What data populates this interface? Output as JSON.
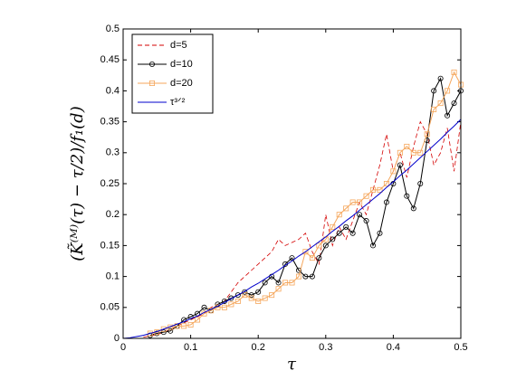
{
  "chart_data": {
    "type": "line",
    "xlabel": "τ",
    "ylabel": "(K̃⁽ᴹ⁾(τ) − τ/2)/f₁(d)",
    "x": [
      0,
      0.01,
      0.02,
      0.03,
      0.04,
      0.05,
      0.06,
      0.07,
      0.08,
      0.09,
      0.1,
      0.11,
      0.12,
      0.13,
      0.14,
      0.15,
      0.16,
      0.17,
      0.18,
      0.19,
      0.2,
      0.21,
      0.22,
      0.23,
      0.24,
      0.25,
      0.26,
      0.27,
      0.28,
      0.29,
      0.3,
      0.31,
      0.32,
      0.33,
      0.34,
      0.35,
      0.36,
      0.37,
      0.38,
      0.39,
      0.4,
      0.41,
      0.42,
      0.43,
      0.44,
      0.45,
      0.46,
      0.47,
      0.48,
      0.49,
      0.5
    ],
    "series": [
      {
        "name": "d=5",
        "color": "#d40000",
        "dash": true,
        "marker": "none",
        "values": [
          null,
          null,
          null,
          0.002,
          0.004,
          0.006,
          0.01,
          0.014,
          0.02,
          0.025,
          0.03,
          0.035,
          0.04,
          0.05,
          0.055,
          0.06,
          0.075,
          0.09,
          0.1,
          0.11,
          0.12,
          0.13,
          0.14,
          0.16,
          0.15,
          0.155,
          0.16,
          0.17,
          0.14,
          0.12,
          0.2,
          0.15,
          0.18,
          0.16,
          0.19,
          0.22,
          0.2,
          0.24,
          0.28,
          0.33,
          0.27,
          0.3,
          0.26,
          0.31,
          0.35,
          0.33,
          0.28,
          0.3,
          0.34,
          0.27,
          0.35
        ]
      },
      {
        "name": "d=10",
        "color": "#000000",
        "dash": false,
        "marker": "circle",
        "values": [
          null,
          null,
          null,
          null,
          0.005,
          0.008,
          0.01,
          0.012,
          0.02,
          0.03,
          0.035,
          0.04,
          0.05,
          0.045,
          0.055,
          0.06,
          0.065,
          0.07,
          0.075,
          0.07,
          0.075,
          0.09,
          0.1,
          0.09,
          0.12,
          0.13,
          0.11,
          0.1,
          0.1,
          0.13,
          0.15,
          0.16,
          0.17,
          0.18,
          0.17,
          0.2,
          0.19,
          0.15,
          0.17,
          0.22,
          0.25,
          0.28,
          0.23,
          0.21,
          0.25,
          0.32,
          0.4,
          0.42,
          0.36,
          0.38,
          0.4
        ]
      },
      {
        "name": "d=20",
        "color": "#f5a65b",
        "dash": false,
        "marker": "square",
        "values": [
          null,
          null,
          null,
          null,
          0.008,
          0.01,
          0.015,
          0.018,
          0.02,
          0.02,
          0.022,
          0.03,
          0.04,
          0.045,
          0.05,
          0.05,
          0.055,
          0.06,
          0.07,
          0.065,
          0.06,
          0.065,
          0.07,
          0.08,
          0.09,
          0.09,
          0.1,
          0.14,
          0.13,
          0.15,
          0.16,
          0.18,
          0.2,
          0.21,
          0.22,
          0.22,
          0.23,
          0.24,
          0.24,
          0.25,
          0.27,
          0.3,
          0.31,
          0.3,
          0.3,
          0.33,
          0.37,
          0.38,
          0.4,
          0.43,
          0.41
        ]
      },
      {
        "name": "τ³ᐟ²",
        "color": "#0000cc",
        "dash": false,
        "marker": "none",
        "values": [
          0,
          0.001,
          0.003,
          0.005,
          0.008,
          0.011,
          0.015,
          0.019,
          0.023,
          0.027,
          0.032,
          0.036,
          0.042,
          0.047,
          0.052,
          0.058,
          0.064,
          0.07,
          0.076,
          0.083,
          0.089,
          0.096,
          0.103,
          0.11,
          0.118,
          0.125,
          0.133,
          0.14,
          0.148,
          0.156,
          0.164,
          0.173,
          0.181,
          0.19,
          0.198,
          0.207,
          0.216,
          0.225,
          0.234,
          0.244,
          0.253,
          0.263,
          0.272,
          0.282,
          0.292,
          0.302,
          0.312,
          0.322,
          0.333,
          0.343,
          0.354
        ]
      }
    ],
    "xlim": [
      0,
      0.5
    ],
    "xticks": [
      0,
      0.1,
      0.2,
      0.3,
      0.4,
      0.5
    ],
    "ylim": [
      0,
      0.5
    ],
    "yticks": [
      0,
      0.05,
      0.1,
      0.15,
      0.2,
      0.25,
      0.3,
      0.35,
      0.4,
      0.45,
      0.5
    ],
    "grid": false,
    "legend": "northwest"
  }
}
